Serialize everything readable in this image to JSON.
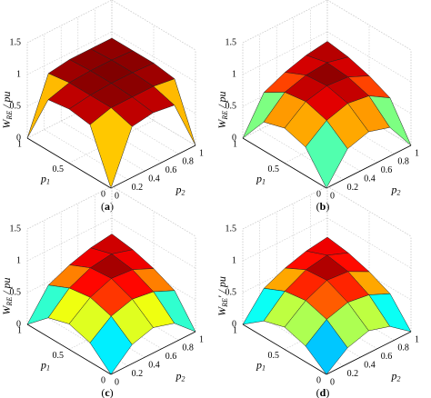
{
  "chart_data": [
    {
      "type": "surface",
      "caption": "a",
      "xlabel": {
        "main": "p",
        "sub": "1"
      },
      "ylabel": {
        "main": "p",
        "sub": "2"
      },
      "zlabel": {
        "main": "W",
        "sub": "RE",
        "rest": " / pu"
      },
      "x": [
        0,
        0.25,
        0.5,
        0.75,
        1
      ],
      "y": [
        0,
        0.25,
        0.5,
        0.75,
        1
      ],
      "z": [
        [
          0,
          0.8,
          0.85,
          0.8,
          0
        ],
        [
          0.8,
          0.9,
          0.9,
          0.9,
          0.85
        ],
        [
          0.85,
          0.9,
          0.92,
          0.92,
          0.9
        ],
        [
          0.8,
          0.9,
          0.92,
          0.92,
          0.9
        ],
        [
          0,
          0.85,
          0.9,
          0.9,
          0.9
        ]
      ],
      "xlim": [
        0,
        1
      ],
      "ylim": [
        0,
        1
      ],
      "zlim": [
        0,
        1.5
      ],
      "xticks": [
        0,
        0.5,
        1
      ],
      "yticks": [
        0,
        0.2,
        0.4,
        0.6,
        0.8,
        1
      ],
      "zticks": [
        0,
        0.5,
        1,
        1.5
      ],
      "colormap": "jet",
      "grid": true
    },
    {
      "type": "surface",
      "caption": "b",
      "xlabel": {
        "main": "p",
        "sub": "1"
      },
      "ylabel": {
        "main": "p",
        "sub": "2"
      },
      "zlabel": {
        "main": "W",
        "sub": "RE",
        "rest": " / pu"
      },
      "x": [
        0,
        0.25,
        0.5,
        0.75,
        1
      ],
      "y": [
        0,
        0.25,
        0.5,
        0.75,
        1
      ],
      "z": [
        [
          0,
          0.45,
          0.55,
          0.45,
          0
        ],
        [
          0.45,
          0.7,
          0.8,
          0.75,
          0.55
        ],
        [
          0.55,
          0.8,
          0.88,
          0.85,
          0.7
        ],
        [
          0.45,
          0.75,
          0.85,
          0.88,
          0.8
        ],
        [
          0,
          0.55,
          0.7,
          0.8,
          0.85
        ]
      ],
      "xlim": [
        0,
        1
      ],
      "ylim": [
        0,
        1
      ],
      "zlim": [
        0,
        1.5
      ],
      "xticks": [
        0,
        0.5,
        1
      ],
      "yticks": [
        0,
        0.2,
        0.4,
        0.6,
        0.8,
        1
      ],
      "zticks": [
        0,
        0.5,
        1,
        1.5
      ],
      "colormap": "jet",
      "grid": true
    },
    {
      "type": "surface",
      "caption": "c",
      "xlabel": {
        "main": "p",
        "sub": "1"
      },
      "ylabel": {
        "main": "p",
        "sub": "2"
      },
      "zlabel": {
        "main": "W",
        "sub": "RE",
        "rest": " / pu"
      },
      "x": [
        0,
        0.25,
        0.5,
        0.75,
        1
      ],
      "y": [
        0,
        0.25,
        0.5,
        0.75,
        1
      ],
      "z": [
        [
          0,
          0.3,
          0.4,
          0.3,
          0
        ],
        [
          0.3,
          0.55,
          0.65,
          0.6,
          0.45
        ],
        [
          0.4,
          0.65,
          0.78,
          0.75,
          0.6
        ],
        [
          0.3,
          0.6,
          0.75,
          0.8,
          0.7
        ],
        [
          0,
          0.45,
          0.6,
          0.7,
          0.75
        ]
      ],
      "xlim": [
        0,
        1
      ],
      "ylim": [
        0,
        1
      ],
      "zlim": [
        0,
        1.5
      ],
      "xticks": [
        0,
        0.5,
        1
      ],
      "yticks": [
        0,
        0.2,
        0.4,
        0.6,
        0.8,
        1
      ],
      "zticks": [
        0,
        0.5,
        1,
        1.5
      ],
      "colormap": "jet",
      "grid": true
    },
    {
      "type": "surface",
      "caption": "d",
      "xlabel": {
        "main": "p",
        "sub": "1"
      },
      "ylabel": {
        "main": "p",
        "sub": "2"
      },
      "zlabel": {
        "main": "W",
        "sub": "RE",
        "rest": "' / pu"
      },
      "x": [
        0,
        0.25,
        0.5,
        0.75,
        1
      ],
      "y": [
        0,
        0.25,
        0.5,
        0.75,
        1
      ],
      "z": [
        [
          0,
          0.25,
          0.35,
          0.25,
          0
        ],
        [
          0.25,
          0.5,
          0.6,
          0.55,
          0.4
        ],
        [
          0.35,
          0.6,
          0.75,
          0.72,
          0.55
        ],
        [
          0.25,
          0.55,
          0.72,
          0.78,
          0.65
        ],
        [
          0,
          0.4,
          0.55,
          0.65,
          0.7
        ]
      ],
      "xlim": [
        0,
        1
      ],
      "ylim": [
        0,
        1
      ],
      "zlim": [
        0,
        1.5
      ],
      "xticks": [
        0,
        0.5,
        1
      ],
      "yticks": [
        0,
        0.2,
        0.4,
        0.6,
        0.8,
        1
      ],
      "zticks": [
        0,
        0.5,
        1,
        1.5
      ],
      "colormap": "jet",
      "grid": true
    }
  ]
}
